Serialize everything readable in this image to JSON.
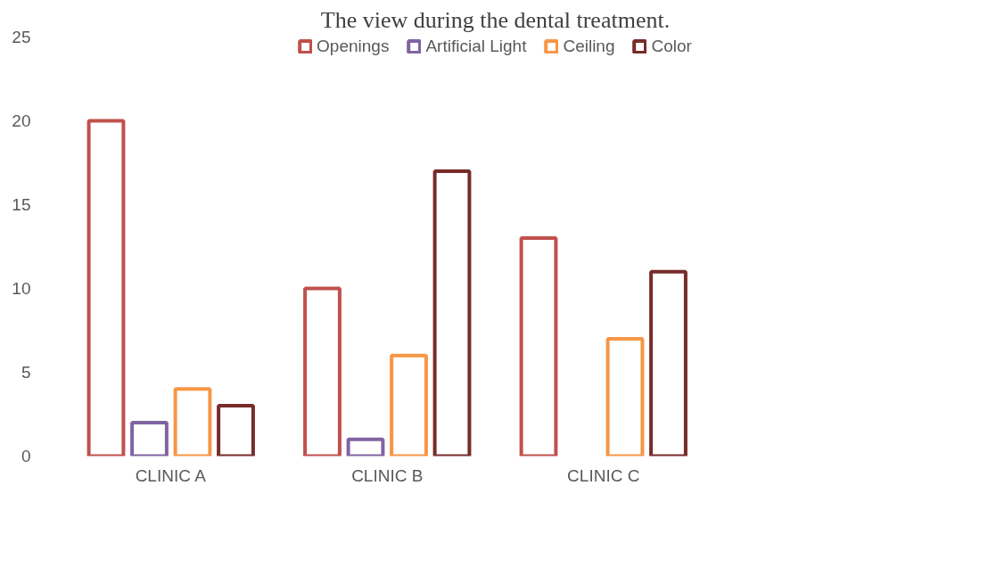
{
  "chart_data": {
    "type": "bar",
    "title": "The view during the dental treatment.",
    "categories": [
      "CLINIC A",
      "CLINIC B",
      "CLINIC C",
      null
    ],
    "series": [
      {
        "name": "Openings",
        "color": "#c0504d",
        "values": [
          20,
          10,
          13,
          null
        ]
      },
      {
        "name": "Artificial Light",
        "color": "#8064a2",
        "values": [
          2,
          1,
          null,
          null
        ]
      },
      {
        "name": "Ceiling",
        "color": "#f79646",
        "values": [
          4,
          6,
          7,
          null
        ]
      },
      {
        "name": "Color",
        "color": "#772c2a",
        "values": [
          3,
          17,
          11,
          null
        ]
      }
    ],
    "ylim": [
      0,
      25
    ],
    "yticks": [
      0,
      5,
      10,
      15,
      20,
      25
    ],
    "grid": false,
    "legend": "top"
  }
}
